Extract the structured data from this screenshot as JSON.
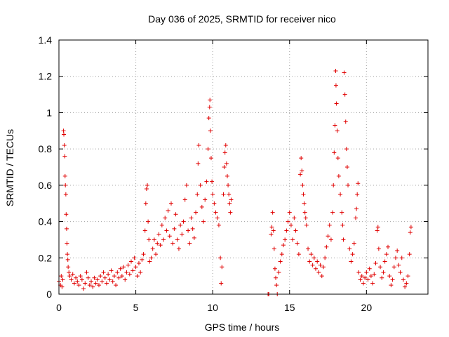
{
  "chart_data": {
    "type": "scatter",
    "title": "Day 036 of 2025, SRMTID for receiver nico",
    "xlabel": "GPS time / hours",
    "ylabel": "SRMTID / TECUs",
    "xlim": [
      0,
      24
    ],
    "ylim": [
      0,
      1.4
    ],
    "xticks": [
      0,
      5,
      10,
      15,
      20
    ],
    "xtick_labels": [
      "0",
      "5",
      "10",
      "15",
      "20"
    ],
    "yticks": [
      0,
      0.2,
      0.4,
      0.6,
      0.8,
      1,
      1.2,
      1.4
    ],
    "ytick_labels": [
      "0",
      "0.2",
      "0.4",
      "0.6",
      "0.8",
      "1",
      "1.2",
      "1.4"
    ],
    "grid": true,
    "marker": "+",
    "series": [
      {
        "name": "SRMTID",
        "color": "#e00000",
        "points": [
          [
            0.0,
            0.07
          ],
          [
            0.1,
            0.05
          ],
          [
            0.15,
            0.1
          ],
          [
            0.2,
            0.04
          ],
          [
            0.25,
            0.08
          ],
          [
            0.3,
            0.9
          ],
          [
            0.32,
            0.88
          ],
          [
            0.35,
            0.82
          ],
          [
            0.38,
            0.76
          ],
          [
            0.4,
            0.65
          ],
          [
            0.42,
            0.6
          ],
          [
            0.45,
            0.55
          ],
          [
            0.47,
            0.44
          ],
          [
            0.5,
            0.36
          ],
          [
            0.52,
            0.28
          ],
          [
            0.55,
            0.22
          ],
          [
            0.58,
            0.19
          ],
          [
            0.6,
            0.15
          ],
          [
            0.65,
            0.12
          ],
          [
            0.7,
            0.1
          ],
          [
            0.8,
            0.08
          ],
          [
            0.9,
            0.11
          ],
          [
            1.0,
            0.06
          ],
          [
            1.1,
            0.09
          ],
          [
            1.2,
            0.07
          ],
          [
            1.3,
            0.05
          ],
          [
            1.4,
            0.1
          ],
          [
            1.5,
            0.08
          ],
          [
            1.6,
            0.03
          ],
          [
            1.7,
            0.06
          ],
          [
            1.8,
            0.12
          ],
          [
            1.9,
            0.09
          ],
          [
            2.0,
            0.05
          ],
          [
            2.1,
            0.07
          ],
          [
            2.2,
            0.04
          ],
          [
            2.3,
            0.09
          ],
          [
            2.4,
            0.06
          ],
          [
            2.5,
            0.08
          ],
          [
            2.6,
            0.05
          ],
          [
            2.7,
            0.1
          ],
          [
            2.8,
            0.07
          ],
          [
            2.9,
            0.12
          ],
          [
            3.0,
            0.09
          ],
          [
            3.1,
            0.06
          ],
          [
            3.2,
            0.11
          ],
          [
            3.3,
            0.08
          ],
          [
            3.4,
            0.13
          ],
          [
            3.5,
            0.07
          ],
          [
            3.6,
            0.1
          ],
          [
            3.7,
            0.05
          ],
          [
            3.8,
            0.12
          ],
          [
            3.9,
            0.09
          ],
          [
            4.0,
            0.14
          ],
          [
            4.1,
            0.1
          ],
          [
            4.2,
            0.15
          ],
          [
            4.3,
            0.08
          ],
          [
            4.4,
            0.12
          ],
          [
            4.5,
            0.16
          ],
          [
            4.6,
            0.11
          ],
          [
            4.7,
            0.18
          ],
          [
            4.8,
            0.13
          ],
          [
            4.9,
            0.2
          ],
          [
            5.0,
            0.15
          ],
          [
            5.1,
            0.1
          ],
          [
            5.2,
            0.17
          ],
          [
            5.3,
            0.12
          ],
          [
            5.4,
            0.19
          ],
          [
            5.5,
            0.22
          ],
          [
            5.6,
            0.35
          ],
          [
            5.65,
            0.5
          ],
          [
            5.7,
            0.58
          ],
          [
            5.75,
            0.6
          ],
          [
            5.8,
            0.4
          ],
          [
            5.85,
            0.3
          ],
          [
            5.9,
            0.18
          ],
          [
            6.0,
            0.2
          ],
          [
            6.1,
            0.25
          ],
          [
            6.2,
            0.3
          ],
          [
            6.3,
            0.22
          ],
          [
            6.4,
            0.28
          ],
          [
            6.5,
            0.33
          ],
          [
            6.6,
            0.27
          ],
          [
            6.7,
            0.38
          ],
          [
            6.8,
            0.3
          ],
          [
            6.9,
            0.42
          ],
          [
            7.0,
            0.35
          ],
          [
            7.1,
            0.46
          ],
          [
            7.2,
            0.32
          ],
          [
            7.3,
            0.5
          ],
          [
            7.4,
            0.28
          ],
          [
            7.5,
            0.36
          ],
          [
            7.6,
            0.44
          ],
          [
            7.7,
            0.3
          ],
          [
            7.8,
            0.25
          ],
          [
            7.9,
            0.38
          ],
          [
            8.0,
            0.33
          ],
          [
            8.1,
            0.4
          ],
          [
            8.2,
            0.52
          ],
          [
            8.3,
            0.6
          ],
          [
            8.4,
            0.35
          ],
          [
            8.5,
            0.28
          ],
          [
            8.6,
            0.42
          ],
          [
            8.7,
            0.36
          ],
          [
            8.8,
            0.31
          ],
          [
            8.9,
            0.45
          ],
          [
            9.0,
            0.55
          ],
          [
            9.05,
            0.72
          ],
          [
            9.1,
            0.82
          ],
          [
            9.2,
            0.6
          ],
          [
            9.3,
            0.48
          ],
          [
            9.4,
            0.4
          ],
          [
            9.5,
            0.52
          ],
          [
            9.6,
            0.62
          ],
          [
            9.7,
            0.8
          ],
          [
            9.75,
            0.97
          ],
          [
            9.8,
            1.03
          ],
          [
            9.82,
            1.07
          ],
          [
            9.85,
            0.9
          ],
          [
            9.9,
            0.75
          ],
          [
            9.95,
            0.62
          ],
          [
            10.0,
            0.55
          ],
          [
            10.1,
            0.5
          ],
          [
            10.2,
            0.45
          ],
          [
            10.3,
            0.42
          ],
          [
            10.4,
            0.38
          ],
          [
            10.5,
            0.2
          ],
          [
            10.55,
            0.06
          ],
          [
            10.6,
            0.15
          ],
          [
            10.7,
            0.55
          ],
          [
            10.75,
            0.7
          ],
          [
            10.8,
            0.78
          ],
          [
            10.85,
            0.82
          ],
          [
            10.9,
            0.72
          ],
          [
            10.95,
            0.65
          ],
          [
            11.0,
            0.6
          ],
          [
            11.05,
            0.55
          ],
          [
            11.1,
            0.5
          ],
          [
            11.15,
            0.45
          ],
          [
            11.2,
            0.52
          ],
          [
            13.6,
            0.0
          ],
          [
            13.65,
            0.0
          ],
          [
            13.8,
            0.33
          ],
          [
            13.85,
            0.37
          ],
          [
            13.9,
            0.45
          ],
          [
            13.95,
            0.35
          ],
          [
            14.0,
            0.25
          ],
          [
            14.05,
            0.14
          ],
          [
            14.1,
            0.09
          ],
          [
            14.15,
            0.05
          ],
          [
            14.2,
            0.0
          ],
          [
            14.3,
            0.12
          ],
          [
            14.4,
            0.18
          ],
          [
            14.5,
            0.22
          ],
          [
            14.6,
            0.27
          ],
          [
            14.7,
            0.3
          ],
          [
            14.8,
            0.35
          ],
          [
            14.9,
            0.4
          ],
          [
            15.0,
            0.45
          ],
          [
            15.1,
            0.38
          ],
          [
            15.2,
            0.3
          ],
          [
            15.3,
            0.42
          ],
          [
            15.4,
            0.35
          ],
          [
            15.5,
            0.28
          ],
          [
            15.6,
            0.22
          ],
          [
            15.7,
            0.66
          ],
          [
            15.75,
            0.75
          ],
          [
            15.8,
            0.68
          ],
          [
            15.85,
            0.6
          ],
          [
            15.9,
            0.55
          ],
          [
            15.95,
            0.5
          ],
          [
            16.0,
            0.45
          ],
          [
            16.05,
            0.42
          ],
          [
            16.1,
            0.38
          ],
          [
            16.2,
            0.25
          ],
          [
            16.3,
            0.18
          ],
          [
            16.4,
            0.22
          ],
          [
            16.5,
            0.16
          ],
          [
            16.6,
            0.2
          ],
          [
            16.7,
            0.14
          ],
          [
            16.8,
            0.18
          ],
          [
            16.9,
            0.12
          ],
          [
            17.0,
            0.16
          ],
          [
            17.1,
            0.1
          ],
          [
            17.2,
            0.15
          ],
          [
            17.3,
            0.2
          ],
          [
            17.4,
            0.26
          ],
          [
            17.5,
            0.32
          ],
          [
            17.6,
            0.38
          ],
          [
            17.7,
            0.3
          ],
          [
            17.8,
            0.45
          ],
          [
            17.85,
            0.6
          ],
          [
            17.9,
            0.78
          ],
          [
            17.95,
            0.93
          ],
          [
            18.0,
            1.23
          ],
          [
            18.02,
            1.15
          ],
          [
            18.05,
            1.05
          ],
          [
            18.1,
            0.9
          ],
          [
            18.15,
            0.75
          ],
          [
            18.2,
            0.65
          ],
          [
            18.3,
            0.55
          ],
          [
            18.4,
            0.45
          ],
          [
            18.45,
            0.38
          ],
          [
            18.5,
            0.3
          ],
          [
            18.55,
            1.22
          ],
          [
            18.6,
            1.1
          ],
          [
            18.65,
            0.95
          ],
          [
            18.7,
            0.8
          ],
          [
            18.75,
            0.7
          ],
          [
            18.8,
            0.6
          ],
          [
            18.9,
            0.25
          ],
          [
            19.0,
            0.18
          ],
          [
            19.1,
            0.22
          ],
          [
            19.2,
            0.28
          ],
          [
            19.3,
            0.42
          ],
          [
            19.35,
            0.47
          ],
          [
            19.4,
            0.55
          ],
          [
            19.45,
            0.61
          ],
          [
            19.5,
            0.12
          ],
          [
            19.6,
            0.08
          ],
          [
            19.7,
            0.1
          ],
          [
            19.8,
            0.06
          ],
          [
            19.9,
            0.09
          ],
          [
            20.0,
            0.12
          ],
          [
            20.1,
            0.08
          ],
          [
            20.2,
            0.14
          ],
          [
            20.3,
            0.1
          ],
          [
            20.4,
            0.06
          ],
          [
            20.5,
            0.11
          ],
          [
            20.6,
            0.17
          ],
          [
            20.7,
            0.35
          ],
          [
            20.75,
            0.37
          ],
          [
            20.8,
            0.25
          ],
          [
            20.9,
            0.15
          ],
          [
            21.0,
            0.09
          ],
          [
            21.1,
            0.12
          ],
          [
            21.2,
            0.18
          ],
          [
            21.3,
            0.22
          ],
          [
            21.4,
            0.26
          ],
          [
            21.5,
            0.1
          ],
          [
            21.6,
            0.05
          ],
          [
            21.7,
            0.08
          ],
          [
            21.8,
            0.15
          ],
          [
            21.9,
            0.2
          ],
          [
            22.0,
            0.24
          ],
          [
            22.1,
            0.16
          ],
          [
            22.2,
            0.12
          ],
          [
            22.3,
            0.2
          ],
          [
            22.4,
            0.08
          ],
          [
            22.5,
            0.04
          ],
          [
            22.6,
            0.06
          ],
          [
            22.7,
            0.1
          ],
          [
            22.8,
            0.22
          ],
          [
            22.85,
            0.34
          ],
          [
            22.9,
            0.37
          ]
        ]
      }
    ]
  }
}
